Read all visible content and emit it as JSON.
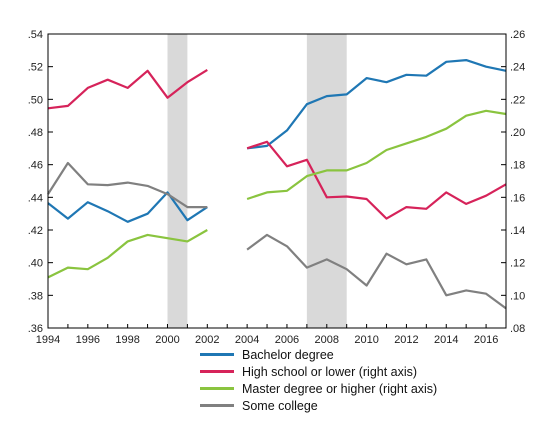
{
  "chart_data": {
    "type": "line",
    "left_axis": {
      "range": [
        0.36,
        0.54
      ],
      "ticks": [
        ".36",
        ".38",
        ".40",
        ".42",
        ".44",
        ".46",
        ".48",
        ".50",
        ".52",
        ".54"
      ]
    },
    "right_axis": {
      "range": [
        0.08,
        0.26
      ],
      "ticks": [
        ".08",
        ".10",
        ".12",
        ".14",
        ".16",
        ".18",
        ".20",
        ".22",
        ".24",
        ".26"
      ]
    },
    "x_axis": {
      "range": [
        1994,
        2017
      ],
      "ticks": [
        "1994",
        "1996",
        "1998",
        "2000",
        "2002",
        "2004",
        "2006",
        "2008",
        "2010",
        "2012",
        "2014",
        "2016"
      ]
    },
    "shaded_periods": [
      [
        2000,
        2001
      ],
      [
        2007,
        2009
      ]
    ],
    "grid": false,
    "legend_position": "bottom",
    "series": [
      {
        "name": "Bachelor degree",
        "axis": "left",
        "color": "#1f77b4",
        "segments": [
          [
            [
              1994,
              0.4365
            ],
            [
              1995,
              0.427
            ],
            [
              1996,
              0.437
            ],
            [
              1997,
              0.4315
            ],
            [
              1998,
              0.425
            ],
            [
              1999,
              0.43
            ],
            [
              2000,
              0.443
            ],
            [
              2001,
              0.426
            ],
            [
              2002,
              0.434
            ]
          ],
          [
            [
              2004,
              0.47
            ],
            [
              2005,
              0.4715
            ],
            [
              2006,
              0.481
            ],
            [
              2007,
              0.497
            ],
            [
              2008,
              0.502
            ],
            [
              2009,
              0.503
            ],
            [
              2010,
              0.513
            ],
            [
              2011,
              0.5105
            ],
            [
              2012,
              0.515
            ],
            [
              2013,
              0.5145
            ],
            [
              2014,
              0.523
            ],
            [
              2015,
              0.524
            ],
            [
              2016,
              0.52
            ],
            [
              2017,
              0.5175
            ]
          ]
        ]
      },
      {
        "name": "High school or lower (right axis)",
        "axis": "right",
        "color": "#d6235a",
        "segments": [
          [
            [
              1994,
              0.2145
            ],
            [
              1995,
              0.216
            ],
            [
              1996,
              0.227
            ],
            [
              1997,
              0.232
            ],
            [
              1998,
              0.227
            ],
            [
              1999,
              0.2375
            ],
            [
              2000,
              0.221
            ],
            [
              2001,
              0.2305
            ],
            [
              2002,
              0.238
            ]
          ],
          [
            [
              2004,
              0.19
            ],
            [
              2005,
              0.194
            ],
            [
              2006,
              0.179
            ],
            [
              2007,
              0.183
            ],
            [
              2008,
              0.16
            ],
            [
              2009,
              0.1605
            ],
            [
              2010,
              0.159
            ],
            [
              2011,
              0.147
            ],
            [
              2012,
              0.154
            ],
            [
              2013,
              0.153
            ],
            [
              2014,
              0.163
            ],
            [
              2015,
              0.156
            ],
            [
              2016,
              0.161
            ],
            [
              2017,
              0.168
            ]
          ]
        ]
      },
      {
        "name": "Master degree or higher (right axis)",
        "axis": "right",
        "color": "#8ac43f",
        "segments": [
          [
            [
              1994,
              0.111
            ],
            [
              1995,
              0.117
            ],
            [
              1996,
              0.116
            ],
            [
              1997,
              0.123
            ],
            [
              1998,
              0.133
            ],
            [
              1999,
              0.137
            ],
            [
              2000,
              0.135
            ],
            [
              2001,
              0.133
            ],
            [
              2002,
              0.14
            ]
          ],
          [
            [
              2004,
              0.159
            ],
            [
              2005,
              0.163
            ],
            [
              2006,
              0.164
            ],
            [
              2007,
              0.173
            ],
            [
              2008,
              0.1765
            ],
            [
              2009,
              0.1765
            ],
            [
              2010,
              0.181
            ],
            [
              2011,
              0.189
            ],
            [
              2012,
              0.193
            ],
            [
              2013,
              0.197
            ],
            [
              2014,
              0.202
            ],
            [
              2015,
              0.21
            ],
            [
              2016,
              0.213
            ],
            [
              2017,
              0.211
            ]
          ]
        ]
      },
      {
        "name": "Some college",
        "axis": "right",
        "color": "#808080",
        "segments": [
          [
            [
              1994,
              0.162
            ],
            [
              1995,
              0.181
            ],
            [
              1996,
              0.168
            ],
            [
              1997,
              0.1675
            ],
            [
              1998,
              0.169
            ],
            [
              1999,
              0.167
            ],
            [
              2000,
              0.162
            ],
            [
              2001,
              0.154
            ],
            [
              2002,
              0.154
            ]
          ],
          [
            [
              2004,
              0.128
            ],
            [
              2005,
              0.137
            ],
            [
              2006,
              0.13
            ],
            [
              2007,
              0.117
            ],
            [
              2008,
              0.122
            ],
            [
              2009,
              0.116
            ],
            [
              2010,
              0.106
            ],
            [
              2011,
              0.1255
            ],
            [
              2012,
              0.119
            ],
            [
              2013,
              0.122
            ],
            [
              2014,
              0.1
            ],
            [
              2015,
              0.103
            ],
            [
              2016,
              0.101
            ],
            [
              2017,
              0.092
            ]
          ]
        ]
      }
    ]
  }
}
